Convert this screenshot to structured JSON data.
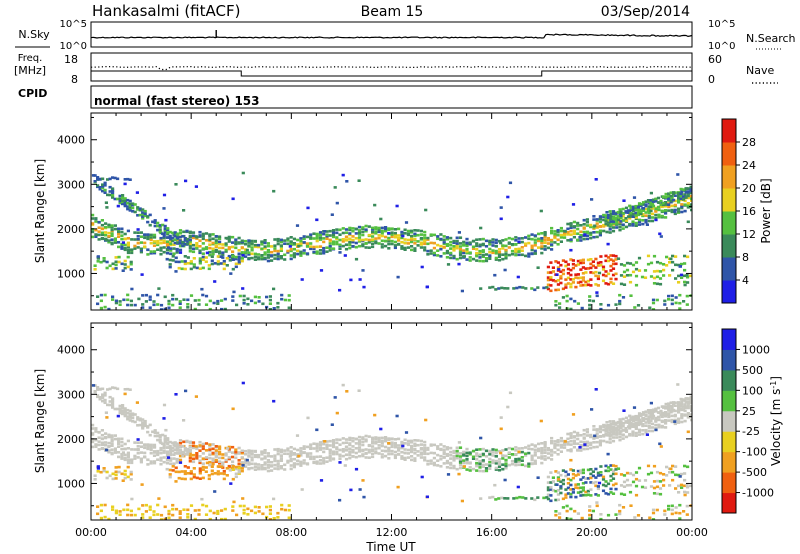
{
  "header": {
    "station": "Hankasalmi (fitACF)",
    "beam": "Beam 15",
    "date": "03/Sep/2014"
  },
  "nsky_panel": {
    "left_label": "N.Sky",
    "left_ticks": [
      "10^5",
      "10^0"
    ],
    "right_label": "N.Search",
    "right_ticks": [
      "10^5",
      "10^0"
    ]
  },
  "freq_panel": {
    "left_label_line1": "Freq.",
    "left_label_line2": "[MHz]",
    "left_ticks": [
      "18",
      "8"
    ],
    "right_label": "Nave",
    "right_ticks": [
      "60",
      "0"
    ]
  },
  "cpid": {
    "label": "CPID",
    "text": "normal (fast stereo) 153"
  },
  "colors": {
    "power": [
      "#1f1fe6",
      "#2f55a8",
      "#3a8a5a",
      "#55c040",
      "#e8d020",
      "#f0a020",
      "#f06010",
      "#e01a10"
    ],
    "velocity": [
      "#e01a10",
      "#f06010",
      "#f0a020",
      "#e8d020",
      "#c8c8c0",
      "#55c040",
      "#3a8a5a",
      "#2f55a8",
      "#1f1fe6"
    ],
    "ground_scatter": "#c8c8c0"
  },
  "chart_data": [
    {
      "type": "heatmap",
      "title": "",
      "quantity": "Power",
      "xlabel": "",
      "ylabel": "Slant Range [km]",
      "x_ticks": [
        "00:00",
        "04:00",
        "08:00",
        "12:00",
        "16:00",
        "20:00",
        "00:00"
      ],
      "xlim_hours": [
        0,
        24
      ],
      "y_ticks": [
        1000,
        2000,
        3000,
        4000
      ],
      "ylim": [
        180,
        4600
      ],
      "colorbar": {
        "label": "Power [dB]",
        "ticks": [
          4,
          8,
          12,
          16,
          20,
          24,
          28
        ],
        "range": [
          0,
          32
        ]
      },
      "grid": false,
      "legend": "colorbar-right"
    },
    {
      "type": "heatmap",
      "title": "",
      "quantity": "Velocity",
      "xlabel": "Time UT",
      "ylabel": "Slant Range [km]",
      "x_ticks": [
        "00:00",
        "04:00",
        "08:00",
        "12:00",
        "16:00",
        "20:00",
        "00:00"
      ],
      "xlim_hours": [
        0,
        24
      ],
      "y_ticks": [
        1000,
        2000,
        3000,
        4000
      ],
      "ylim": [
        180,
        4600
      ],
      "colorbar": {
        "label": "Velocity [m s",
        "label_superscript": "-1",
        "label_end": "]",
        "ticks": [
          1000,
          500,
          100,
          25,
          -25,
          -100,
          -500,
          -1000
        ]
      },
      "grid": false,
      "legend": "colorbar-right"
    }
  ]
}
